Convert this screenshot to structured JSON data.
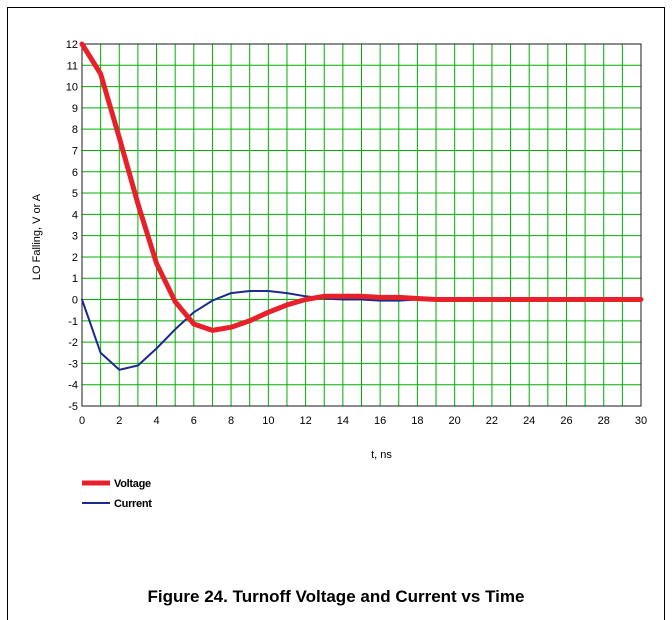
{
  "figure": {
    "caption": "Figure 24. Turnoff Voltage and Current vs Time"
  },
  "chart_data": {
    "type": "line",
    "xlabel": "t, ns",
    "ylabel": "LO Falling, V or A",
    "xlim": [
      0,
      30
    ],
    "ylim": [
      -5,
      12
    ],
    "x_ticks": [
      0,
      2,
      4,
      6,
      8,
      10,
      12,
      14,
      16,
      18,
      20,
      22,
      24,
      26,
      28,
      30
    ],
    "y_ticks": [
      12,
      11,
      10,
      9,
      8,
      7,
      6,
      5,
      4,
      3,
      2,
      1,
      0,
      -1,
      -2,
      -3,
      -4,
      -5
    ],
    "grid": true,
    "grid_color": "#00b000",
    "legend_position": "bottom-left",
    "series": [
      {
        "name": "Voltage",
        "color": "#e8202a",
        "x": [
          0,
          1,
          2,
          3,
          4,
          5,
          6,
          7,
          8,
          9,
          10,
          11,
          12,
          13,
          14,
          15,
          16,
          17,
          18,
          19,
          20,
          22,
          24,
          26,
          28,
          30
        ],
        "y": [
          12,
          10.6,
          7.6,
          4.5,
          1.7,
          -0.1,
          -1.15,
          -1.45,
          -1.3,
          -1.0,
          -0.6,
          -0.25,
          0.0,
          0.15,
          0.15,
          0.15,
          0.1,
          0.1,
          0.05,
          0.0,
          0.0,
          0.0,
          0.0,
          0.0,
          0.0,
          0.0
        ]
      },
      {
        "name": "Current",
        "color": "#1c2a8c",
        "x": [
          0,
          1,
          2,
          3,
          4,
          5,
          6,
          7,
          8,
          9,
          10,
          11,
          12,
          13,
          14,
          15,
          16,
          17,
          18,
          19,
          20,
          22,
          24,
          26,
          28,
          30
        ],
        "y": [
          0,
          -2.5,
          -3.3,
          -3.1,
          -2.3,
          -1.4,
          -0.6,
          -0.05,
          0.3,
          0.4,
          0.4,
          0.3,
          0.15,
          0.05,
          0.0,
          0.0,
          -0.05,
          -0.05,
          0.0,
          0.0,
          0.0,
          0.0,
          0.0,
          0.0,
          0.0,
          0.0
        ]
      }
    ]
  }
}
